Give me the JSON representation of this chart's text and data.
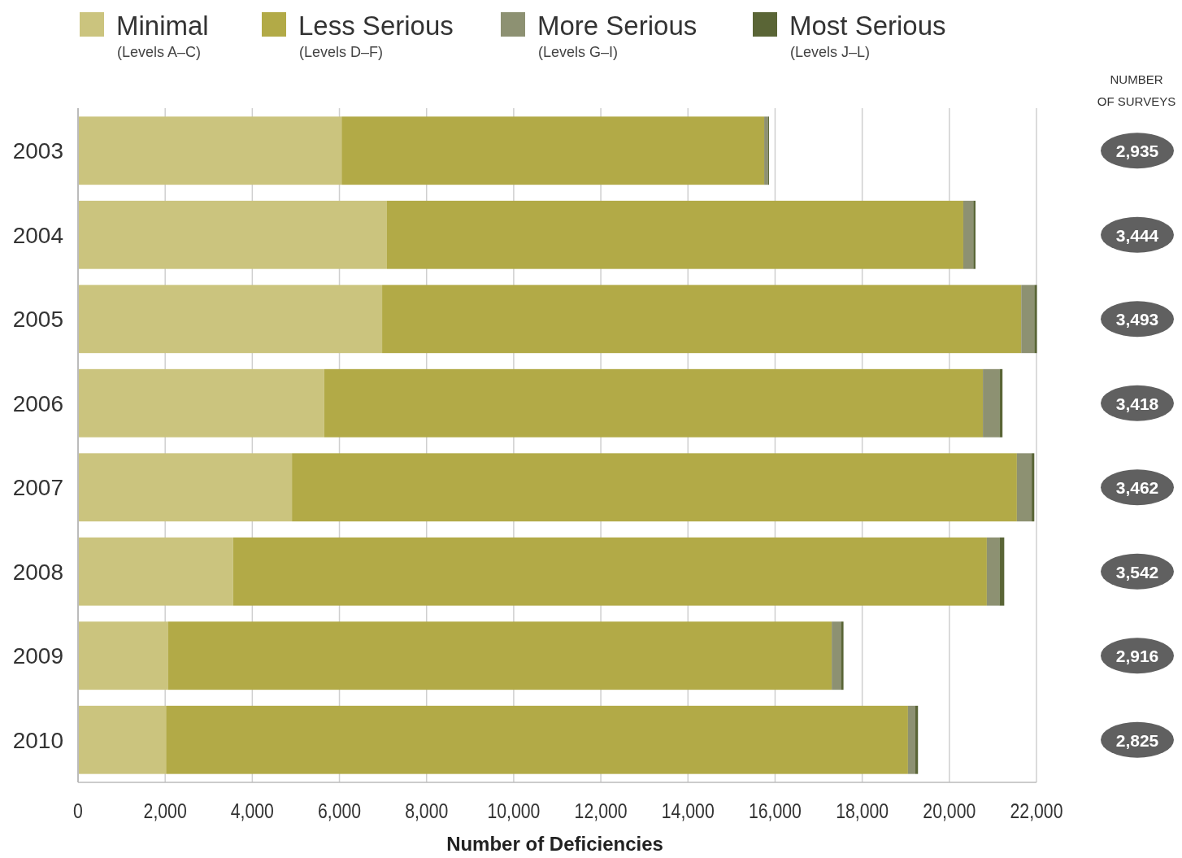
{
  "chart_data": {
    "type": "bar",
    "orientation": "horizontal",
    "stacked": true,
    "xlabel": "Number of Deficiencies",
    "categories": [
      "2003",
      "2004",
      "2005",
      "2006",
      "2007",
      "2008",
      "2009",
      "2010"
    ],
    "series": [
      {
        "name": "Minimal\n(Levels A–C)",
        "color": "#cbc47e",
        "values": [
          6050,
          7090,
          6980,
          5650,
          4910,
          3560,
          2070,
          2020
        ]
      },
      {
        "name": "Less Serious\n(Levels D–F)",
        "color": "#b2aa47",
        "values": [
          9700,
          13230,
          14670,
          15120,
          16640,
          17300,
          15230,
          17030
        ]
      },
      {
        "name": "More Serious\n(Levels G–I)",
        "color": "#8d9172",
        "values": [
          90,
          230,
          300,
          380,
          340,
          290,
          210,
          170
        ]
      },
      {
        "name": "Most Serious\n(Levels J–L)",
        "color": "#5a6536",
        "values": [
          20,
          50,
          60,
          70,
          60,
          110,
          60,
          60
        ]
      }
    ],
    "xlim": [
      0,
      22000
    ],
    "xticks": [
      {
        "value": 0,
        "label": "0"
      },
      {
        "value": 2000,
        "label": "2,000"
      },
      {
        "value": 4000,
        "label": "4,000"
      },
      {
        "value": 6000,
        "label": "6,000"
      },
      {
        "value": 8000,
        "label": "8,000"
      },
      {
        "value": 10000,
        "label": "10,000"
      },
      {
        "value": 12000,
        "label": "12,000"
      },
      {
        "value": 14000,
        "label": "14,000"
      },
      {
        "value": 16000,
        "label": "16,000"
      },
      {
        "value": 18000,
        "label": "18,000"
      },
      {
        "value": 20000,
        "label": "20,000"
      },
      {
        "value": 22000,
        "label": "22,000"
      }
    ],
    "grid": "x",
    "legend": "top",
    "annotations": [
      "NUMBER\nOF SURVEYS",
      "2,935",
      "3,444",
      "3,493",
      "3,418",
      "3,462",
      "3,542",
      "2,916",
      "2,825"
    ]
  }
}
